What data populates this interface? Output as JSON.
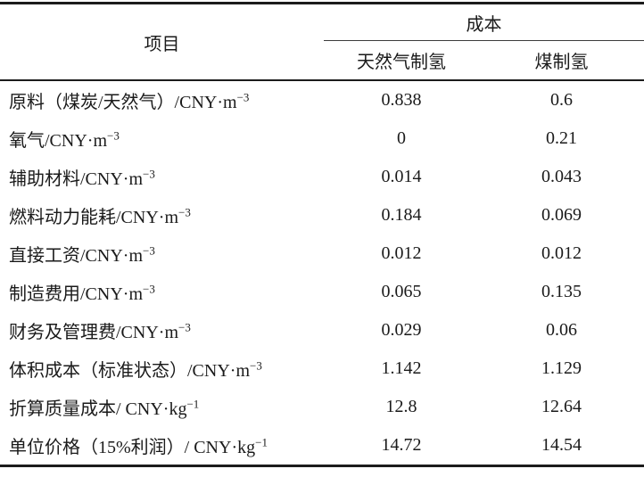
{
  "table": {
    "header": {
      "item": "项目",
      "cost_group": "成本",
      "col_natural_gas": "天然气制氢",
      "col_coal": "煤制氢"
    },
    "rows": [
      {
        "item": "原料（煤炭/天然气）/CNY·m",
        "sup": "−3",
        "natural_gas": "0.838",
        "coal": "0.6"
      },
      {
        "item": "氧气/CNY·m",
        "sup": "−3",
        "natural_gas": "0",
        "coal": "0.21"
      },
      {
        "item": "辅助材料/CNY·m",
        "sup": "−3",
        "natural_gas": "0.014",
        "coal": "0.043"
      },
      {
        "item": "燃料动力能耗/CNY·m",
        "sup": "−3",
        "natural_gas": "0.184",
        "coal": "0.069"
      },
      {
        "item": "直接工资/CNY·m",
        "sup": "−3",
        "natural_gas": "0.012",
        "coal": "0.012"
      },
      {
        "item": "制造费用/CNY·m",
        "sup": "−3",
        "natural_gas": "0.065",
        "coal": "0.135"
      },
      {
        "item": "财务及管理费/CNY·m",
        "sup": "−3",
        "natural_gas": "0.029",
        "coal": "0.06"
      },
      {
        "item": "体积成本（标准状态）/CNY·m",
        "sup": "−3",
        "natural_gas": "1.142",
        "coal": "1.129"
      },
      {
        "item": "折算质量成本/ CNY·kg",
        "sup": "−1",
        "natural_gas": "12.8",
        "coal": "12.64"
      },
      {
        "item": "单位价格（15%利润）/ CNY·kg",
        "sup": "−1",
        "natural_gas": "14.72",
        "coal": "14.54"
      }
    ],
    "colors": {
      "text": "#1a1a1a",
      "rule_heavy": "#1c1c1c",
      "rule_light": "#3c3c3c",
      "background": "#ffffff"
    }
  }
}
